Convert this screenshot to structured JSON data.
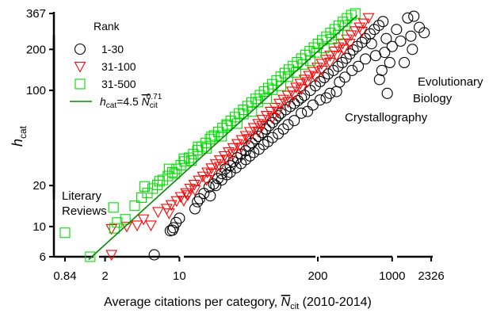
{
  "chart_data": {
    "type": "scatter",
    "xscale": "log",
    "yscale": "log",
    "xlim": [
      0.84,
      2326
    ],
    "ylim": [
      6,
      367
    ],
    "xticks": [
      0.84,
      2,
      10,
      200,
      1000,
      2326
    ],
    "xtick_labels": [
      "0.84",
      "2",
      "10",
      "200",
      "1000",
      "2326"
    ],
    "yticks": [
      6,
      10,
      20,
      100,
      200,
      367
    ],
    "ytick_labels": [
      "6",
      "10",
      "20",
      "100",
      "200",
      "367"
    ],
    "xlabel": {
      "main": "Average citations per category, ",
      "sym": "N",
      "sub": "cit",
      "suffix": " (2010-2014)"
    },
    "ylabel": {
      "main": "h",
      "sub": "cat"
    },
    "legend": {
      "title": "Rank",
      "placement": "top-left",
      "entries": [
        {
          "label": "1-30",
          "marker": "circle",
          "color": "#000000"
        },
        {
          "label": "31-100",
          "marker": "triangle-down",
          "color": "#ff0000"
        },
        {
          "label": "31-500",
          "marker": "square",
          "color": "#00dd00"
        }
      ],
      "fit": {
        "p1": "h",
        "p1_sub": "cat",
        "p2": "=4.5 ",
        "p3": "N",
        "p3_sub": "cit",
        "p3_sup": "0.71",
        "color": "#008800"
      }
    },
    "fit": {
      "a": 4.5,
      "b": 0.71,
      "x_range": [
        1.4,
        470
      ],
      "color": "#008800"
    },
    "annotations": [
      {
        "text": "Literary",
        "x": 0.78,
        "y": 13.8
      },
      {
        "text": "Reviews",
        "x": 0.78,
        "y": 10.8
      },
      {
        "text": "Evolutionary",
        "x": 1060,
        "y": 100
      },
      {
        "text": "Biology",
        "x": 1060,
        "y": 79
      },
      {
        "text": "Crystallography",
        "x": 220,
        "y": 54
      }
    ],
    "series": [
      {
        "name": "1-30",
        "marker": "circle",
        "color": "#000000",
        "points": [
          [
            5.8,
            6.2
          ],
          [
            8.2,
            9.3
          ],
          [
            8.8,
            9.8
          ],
          [
            9.3,
            10.7
          ],
          [
            10.0,
            11.5
          ],
          [
            8.6,
            9.4
          ],
          [
            14,
            13.5
          ],
          [
            14.8,
            15.2
          ],
          [
            15.5,
            16.0
          ],
          [
            17,
            17.5
          ],
          [
            19,
            19.5
          ],
          [
            21,
            20.5
          ],
          [
            23,
            22.5
          ],
          [
            19.5,
            16.8
          ],
          [
            25,
            24.5
          ],
          [
            27,
            26.5
          ],
          [
            30,
            28
          ],
          [
            32,
            30
          ],
          [
            35,
            32
          ],
          [
            38,
            34
          ],
          [
            42,
            36
          ],
          [
            45,
            39
          ],
          [
            48,
            41
          ],
          [
            52,
            44
          ],
          [
            55,
            46
          ],
          [
            60,
            49
          ],
          [
            65,
            52
          ],
          [
            70,
            55
          ],
          [
            75,
            58
          ],
          [
            80,
            62
          ],
          [
            85,
            65
          ],
          [
            90,
            68
          ],
          [
            100,
            72
          ],
          [
            110,
            76
          ],
          [
            120,
            80
          ],
          [
            130,
            84
          ],
          [
            140,
            88
          ],
          [
            150,
            92
          ],
          [
            170,
            100
          ],
          [
            190,
            108
          ],
          [
            210,
            116
          ],
          [
            230,
            124
          ],
          [
            250,
            132
          ],
          [
            280,
            140
          ],
          [
            310,
            150
          ],
          [
            340,
            160
          ],
          [
            370,
            172
          ],
          [
            400,
            185
          ],
          [
            430,
            198
          ],
          [
            470,
            210
          ],
          [
            520,
            225
          ],
          [
            560,
            240
          ],
          [
            620,
            260
          ],
          [
            680,
            280
          ],
          [
            750,
            300
          ],
          [
            820,
            320
          ],
          [
            700,
            180
          ],
          [
            800,
            140
          ],
          [
            900,
            95
          ],
          [
            760,
            120
          ],
          [
            1000,
            210
          ],
          [
            1200,
            230
          ],
          [
            1300,
            160
          ],
          [
            1500,
            250
          ],
          [
            1400,
            340
          ],
          [
            1600,
            350
          ],
          [
            1800,
            290
          ],
          [
            2000,
            265
          ],
          [
            1550,
            200
          ],
          [
            1100,
            280
          ],
          [
            950,
            160
          ],
          [
            850,
            190
          ],
          [
            880,
            240
          ],
          [
            640,
            220
          ],
          [
            560,
            170
          ],
          [
            480,
            150
          ],
          [
            420,
            140
          ],
          [
            360,
            125
          ],
          [
            320,
            115
          ],
          [
            300,
            98
          ],
          [
            260,
            95
          ],
          [
            240,
            88
          ],
          [
            210,
            85
          ],
          [
            180,
            78
          ],
          [
            160,
            70
          ],
          [
            140,
            68
          ],
          [
            120,
            60
          ],
          [
            105,
            56
          ],
          [
            95,
            52
          ],
          [
            85,
            48
          ],
          [
            75,
            45
          ],
          [
            68,
            42
          ],
          [
            62,
            40
          ],
          [
            56,
            37
          ],
          [
            50,
            35
          ],
          [
            46,
            33
          ],
          [
            42,
            31
          ],
          [
            38,
            29
          ],
          [
            34,
            27
          ],
          [
            30,
            25
          ],
          [
            28,
            24
          ],
          [
            25,
            22
          ],
          [
            22,
            20
          ]
        ]
      },
      {
        "name": "31-100",
        "marker": "triangle-down",
        "color": "#ff0000",
        "points": [
          [
            2.3,
            6.2
          ],
          [
            2.3,
            9.6
          ],
          [
            3.2,
            10.0
          ],
          [
            4.0,
            10.2
          ],
          [
            4.6,
            11.3
          ],
          [
            5.4,
            10.2
          ],
          [
            6.3,
            12.8
          ],
          [
            7.6,
            13.5
          ],
          [
            8.4,
            14.4
          ],
          [
            9.4,
            15.4
          ],
          [
            10.3,
            16.5
          ],
          [
            11.5,
            17.6
          ],
          [
            12.6,
            19.0
          ],
          [
            13.8,
            20.3
          ],
          [
            15.2,
            21.8
          ],
          [
            16.6,
            23.3
          ],
          [
            18.3,
            25.0
          ],
          [
            20.0,
            26.8
          ],
          [
            22.0,
            28.7
          ],
          [
            24.0,
            30.7
          ],
          [
            26.5,
            32.9
          ],
          [
            29.0,
            35.2
          ],
          [
            32.0,
            37.7
          ],
          [
            35.0,
            40.4
          ],
          [
            38.5,
            43.2
          ],
          [
            42.0,
            46.3
          ],
          [
            46.0,
            49.6
          ],
          [
            50.0,
            53.0
          ],
          [
            55.0,
            56.8
          ],
          [
            60.0,
            60.8
          ],
          [
            66.0,
            65.1
          ],
          [
            72.0,
            69.7
          ],
          [
            79.0,
            74.6
          ],
          [
            87.0,
            79.9
          ],
          [
            95.0,
            85.6
          ],
          [
            104,
            91.6
          ],
          [
            114,
            98.1
          ],
          [
            125,
            105
          ],
          [
            137,
            112
          ],
          [
            150,
            120
          ],
          [
            165,
            128
          ],
          [
            181,
            137
          ],
          [
            198,
            147
          ],
          [
            217,
            157
          ],
          [
            238,
            168
          ],
          [
            261,
            180
          ],
          [
            286,
            193
          ],
          [
            313,
            207
          ],
          [
            343,
            221
          ],
          [
            376,
            237
          ],
          [
            412,
            254
          ],
          [
            451,
            272
          ],
          [
            494,
            290
          ],
          [
            541,
            310
          ],
          [
            600,
            340
          ],
          [
            11,
            15.5
          ],
          [
            14,
            18.5
          ],
          [
            18,
            22
          ],
          [
            24,
            27.5
          ],
          [
            32,
            34
          ],
          [
            45,
            44
          ],
          [
            60,
            55
          ],
          [
            85,
            70
          ],
          [
            120,
            92
          ],
          [
            160,
            115
          ],
          [
            220,
            140
          ],
          [
            300,
            180
          ],
          [
            400,
            220
          ],
          [
            520,
            270
          ],
          [
            8,
            12.5
          ],
          [
            12,
            17
          ],
          [
            20,
            24.5
          ],
          [
            28,
            31
          ],
          [
            38,
            38
          ],
          [
            55,
            50
          ],
          [
            75,
            63
          ],
          [
            105,
            82
          ],
          [
            140,
            102
          ],
          [
            190,
            125
          ],
          [
            260,
            160
          ],
          [
            350,
            200
          ]
        ]
      },
      {
        "name": "31-500",
        "marker": "square",
        "color": "#00dd00",
        "points": [
          [
            0.84,
            9.0
          ],
          [
            1.45,
            6.0
          ],
          [
            2.45,
            9.7
          ],
          [
            2.6,
            10.7
          ],
          [
            3.1,
            11.3
          ],
          [
            2.4,
            13.8
          ],
          [
            3.8,
            14.2
          ],
          [
            4.4,
            16.3
          ],
          [
            5.0,
            17.6
          ],
          [
            5.6,
            19.0
          ],
          [
            6.2,
            20.2
          ],
          [
            7.0,
            22.0
          ],
          [
            7.8,
            23.5
          ],
          [
            8.6,
            25.0
          ],
          [
            9.4,
            26.5
          ],
          [
            10.3,
            28.2
          ],
          [
            11.2,
            30.0
          ],
          [
            12.3,
            32.0
          ],
          [
            13.5,
            34.1
          ],
          [
            14.8,
            36.3
          ],
          [
            16.2,
            38.6
          ],
          [
            17.7,
            41.1
          ],
          [
            19.4,
            43.8
          ],
          [
            21.2,
            46.6
          ],
          [
            23.2,
            49.6
          ],
          [
            25.4,
            52.8
          ],
          [
            27.8,
            56.2
          ],
          [
            30.4,
            59.8
          ],
          [
            33.3,
            63.6
          ],
          [
            36.4,
            67.7
          ],
          [
            39.8,
            72.0
          ],
          [
            43.6,
            76.6
          ],
          [
            47.7,
            81.5
          ],
          [
            52.2,
            86.7
          ],
          [
            57.1,
            92.2
          ],
          [
            62.5,
            98.1
          ],
          [
            68.4,
            104
          ],
          [
            74.8,
            111
          ],
          [
            81.9,
            118
          ],
          [
            89.6,
            126
          ],
          [
            98.0,
            134
          ],
          [
            107,
            142
          ],
          [
            117,
            151
          ],
          [
            128,
            161
          ],
          [
            140,
            171
          ],
          [
            153,
            182
          ],
          [
            168,
            194
          ],
          [
            184,
            206
          ],
          [
            201,
            219
          ],
          [
            220,
            233
          ],
          [
            241,
            248
          ],
          [
            263,
            264
          ],
          [
            288,
            281
          ],
          [
            315,
            299
          ],
          [
            345,
            318
          ],
          [
            377,
            338
          ],
          [
            413,
            357
          ],
          [
            450,
            367
          ],
          [
            4.7,
            19.7
          ],
          [
            6.5,
            21.5
          ],
          [
            9,
            24.5
          ],
          [
            13,
            30.5
          ],
          [
            18,
            37.5
          ],
          [
            25,
            46
          ],
          [
            35,
            57
          ],
          [
            48,
            70
          ],
          [
            66,
            87
          ],
          [
            90,
            108
          ],
          [
            125,
            135
          ],
          [
            170,
            165
          ],
          [
            230,
            205
          ],
          [
            310,
            255
          ],
          [
            8,
            26.5
          ],
          [
            11,
            31.5
          ],
          [
            15,
            38.5
          ],
          [
            20,
            45.5
          ],
          [
            28,
            55
          ],
          [
            40,
            67
          ],
          [
            55,
            82
          ],
          [
            75,
            101
          ],
          [
            105,
            126
          ],
          [
            145,
            155
          ],
          [
            195,
            190
          ],
          [
            270,
            238
          ],
          [
            360,
            300
          ]
        ]
      }
    ]
  }
}
